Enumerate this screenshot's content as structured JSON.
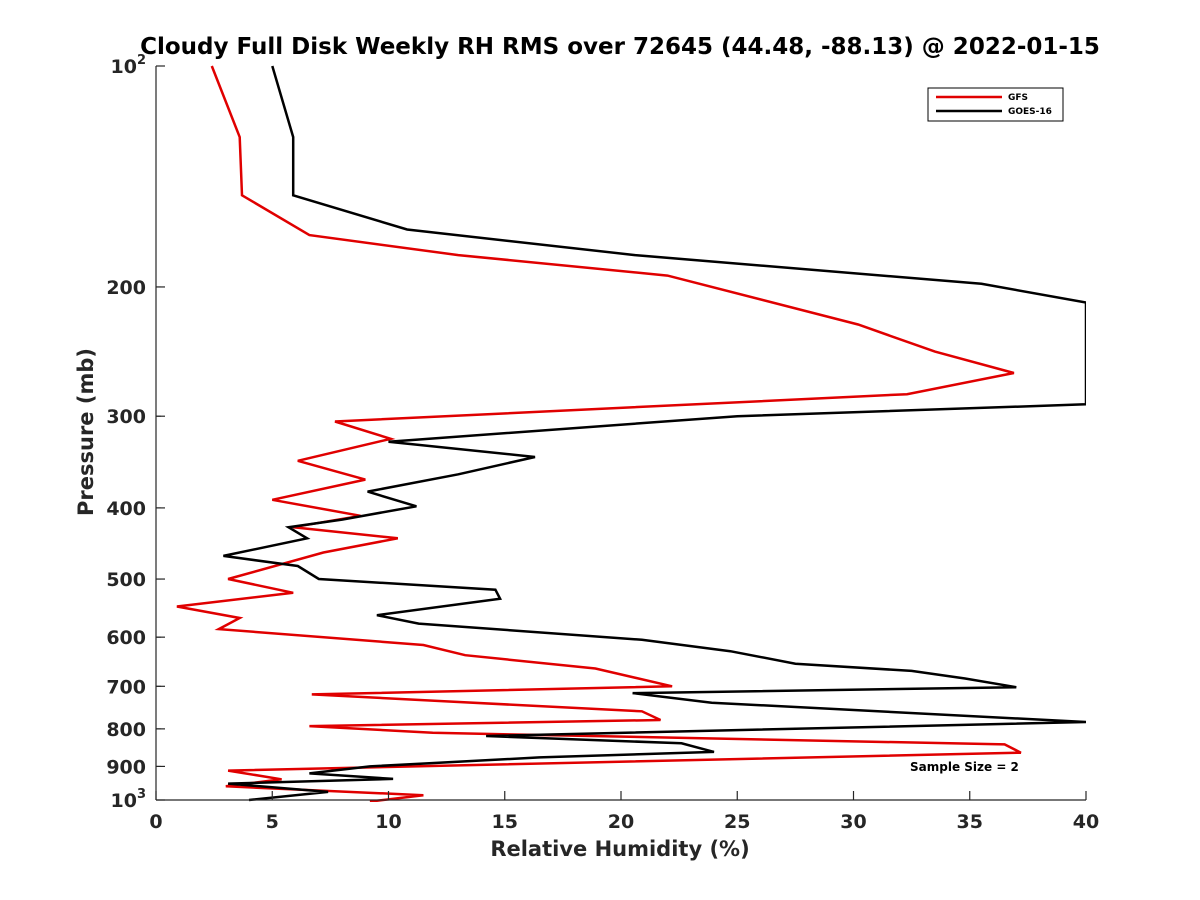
{
  "chart_data": {
    "type": "line",
    "title": "Cloudy Full Disk Weekly RH RMS over 72645 (44.48, -88.13) @ 2022-01-15",
    "xlabel": "Relative Humidity (%)",
    "ylabel": "Pressure (mb)",
    "xlim": [
      0,
      40
    ],
    "ylim": [
      100,
      1000
    ],
    "y_scale": "log",
    "y_reversed": true,
    "x_ticks": [
      0,
      5,
      10,
      15,
      20,
      25,
      30,
      35,
      40
    ],
    "y_ticks": [
      {
        "value": 100,
        "base": "10",
        "exp": "2"
      },
      {
        "value": 200,
        "label": "200"
      },
      {
        "value": 300,
        "label": "300"
      },
      {
        "value": 400,
        "label": "400"
      },
      {
        "value": 500,
        "label": "500"
      },
      {
        "value": 600,
        "label": "600"
      },
      {
        "value": 700,
        "label": "700"
      },
      {
        "value": 800,
        "label": "800"
      },
      {
        "value": 900,
        "label": "900"
      },
      {
        "value": 1000,
        "base": "10",
        "exp": "3"
      }
    ],
    "grid": false,
    "legend_position": "top-right",
    "annotation": "Sample Size = 2",
    "series": [
      {
        "name": "GFS",
        "color": "#e00000",
        "points": [
          [
            2.4,
            100
          ],
          [
            3.6,
            125
          ],
          [
            3.7,
            150
          ],
          [
            6.6,
            170
          ],
          [
            13.0,
            181
          ],
          [
            22.0,
            193
          ],
          [
            30.2,
            225
          ],
          [
            33.5,
            245
          ],
          [
            36.9,
            262
          ],
          [
            32.3,
            280
          ],
          [
            7.7,
            305
          ],
          [
            10.1,
            322
          ],
          [
            6.1,
            345
          ],
          [
            9.0,
            366
          ],
          [
            5.0,
            390
          ],
          [
            8.8,
            410
          ],
          [
            5.9,
            425
          ],
          [
            10.4,
            440
          ],
          [
            7.2,
            460
          ],
          [
            3.1,
            500
          ],
          [
            5.9,
            522
          ],
          [
            0.9,
            545
          ],
          [
            3.6,
            565
          ],
          [
            2.7,
            585
          ],
          [
            11.5,
            615
          ],
          [
            13.3,
            635
          ],
          [
            18.9,
            662
          ],
          [
            22.2,
            700
          ],
          [
            6.7,
            718
          ],
          [
            12.5,
            734
          ],
          [
            20.9,
            757
          ],
          [
            21.7,
            778
          ],
          [
            6.6,
            793
          ],
          [
            11.9,
            810
          ],
          [
            36.5,
            840
          ],
          [
            37.2,
            862
          ],
          [
            3.1,
            912
          ],
          [
            5.4,
            937
          ],
          [
            3.0,
            958
          ],
          [
            11.5,
            985
          ],
          [
            9.2,
            1005
          ]
        ]
      },
      {
        "name": "GOES-16",
        "color": "#000000",
        "points": [
          [
            5.0,
            100
          ],
          [
            5.9,
            125
          ],
          [
            5.9,
            150
          ],
          [
            10.8,
            167
          ],
          [
            20.6,
            181
          ],
          [
            35.5,
            198
          ],
          [
            40.0,
            210
          ],
          [
            40.0,
            289
          ],
          [
            25.0,
            300
          ],
          [
            10.0,
            325
          ],
          [
            16.3,
            341
          ],
          [
            13.0,
            360
          ],
          [
            9.1,
            380
          ],
          [
            11.2,
            398
          ],
          [
            8.0,
            415
          ],
          [
            5.7,
            425
          ],
          [
            6.5,
            440
          ],
          [
            2.9,
            465
          ],
          [
            6.1,
            480
          ],
          [
            7.0,
            500
          ],
          [
            14.6,
            517
          ],
          [
            14.8,
            532
          ],
          [
            9.5,
            560
          ],
          [
            11.3,
            575
          ],
          [
            20.9,
            605
          ],
          [
            24.7,
            627
          ],
          [
            27.5,
            652
          ],
          [
            32.5,
            667
          ],
          [
            34.8,
            683
          ],
          [
            37.0,
            702
          ],
          [
            20.5,
            715
          ],
          [
            23.9,
            737
          ],
          [
            40.0,
            783
          ],
          [
            14.2,
            818
          ],
          [
            22.6,
            837
          ],
          [
            24.0,
            860
          ],
          [
            16.5,
            875
          ],
          [
            9.2,
            900
          ],
          [
            6.6,
            920
          ],
          [
            10.2,
            936
          ],
          [
            3.1,
            950
          ],
          [
            7.4,
            975
          ],
          [
            4.0,
            1000
          ]
        ]
      }
    ]
  }
}
